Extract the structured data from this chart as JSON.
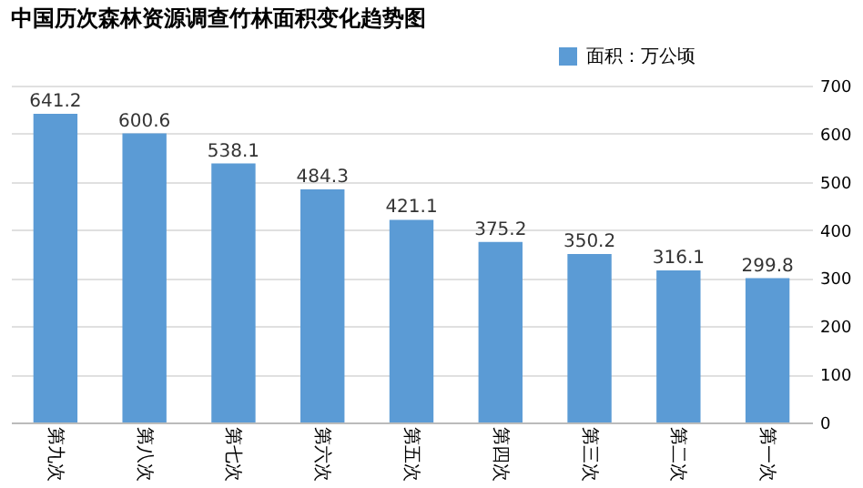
{
  "chart_data": {
    "type": "bar",
    "title": "中国历次森林资源调查竹林面积变化趋势图",
    "categories": [
      "第九次",
      "第八次",
      "第七次",
      "第六次",
      "第五次",
      "第四次",
      "第三次",
      "第二次",
      "第一次"
    ],
    "series": [
      {
        "name": "面积：万公顷",
        "color": "#5b9bd5",
        "values": [
          641.2,
          600.6,
          538.1,
          484.3,
          421.1,
          375.2,
          350.2,
          316.1,
          299.8
        ]
      }
    ],
    "ylim": [
      0,
      700
    ],
    "yticks": [
      0,
      100,
      200,
      300,
      400,
      500,
      600,
      700
    ],
    "grid": "y",
    "legend": "top right",
    "data_labels": true
  }
}
